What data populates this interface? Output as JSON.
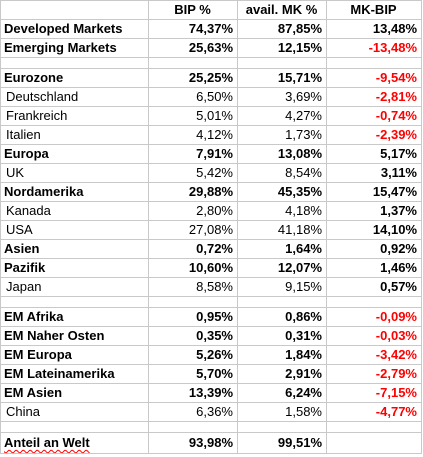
{
  "header": {
    "col1": "",
    "col2": "BIP %",
    "col3": "avail. MK %",
    "col4": "MK-BIP"
  },
  "rows": [
    {
      "label": "Developed Markets",
      "bip": "74,37%",
      "mk": "87,85%",
      "diff": "13,48%"
    },
    {
      "label": "Emerging Markets",
      "bip": "25,63%",
      "mk": "12,15%",
      "diff": "-13,48%"
    },
    {
      "label": "Eurozone",
      "bip": "25,25%",
      "mk": "15,71%",
      "diff": "-9,54%"
    },
    {
      "label": "Deutschland",
      "bip": "6,50%",
      "mk": "3,69%",
      "diff": "-2,81%"
    },
    {
      "label": "Frankreich",
      "bip": "5,01%",
      "mk": "4,27%",
      "diff": "-0,74%"
    },
    {
      "label": "Italien",
      "bip": "4,12%",
      "mk": "1,73%",
      "diff": "-2,39%"
    },
    {
      "label": "Europa",
      "bip": "7,91%",
      "mk": "13,08%",
      "diff": "5,17%"
    },
    {
      "label": "UK",
      "bip": "5,42%",
      "mk": "8,54%",
      "diff": "3,11%"
    },
    {
      "label": "Nordamerika",
      "bip": "29,88%",
      "mk": "45,35%",
      "diff": "15,47%"
    },
    {
      "label": "Kanada",
      "bip": "2,80%",
      "mk": "4,18%",
      "diff": "1,37%"
    },
    {
      "label": "USA",
      "bip": "27,08%",
      "mk": "41,18%",
      "diff": "14,10%"
    },
    {
      "label": "Asien",
      "bip": "0,72%",
      "mk": "1,64%",
      "diff": "0,92%"
    },
    {
      "label": "Pazifik",
      "bip": "10,60%",
      "mk": "12,07%",
      "diff": "1,46%"
    },
    {
      "label": "Japan",
      "bip": "8,58%",
      "mk": "9,15%",
      "diff": "0,57%"
    },
    {
      "label": "EM Afrika",
      "bip": "0,95%",
      "mk": "0,86%",
      "diff": "-0,09%"
    },
    {
      "label": "EM Naher Osten",
      "bip": "0,35%",
      "mk": "0,31%",
      "diff": "-0,03%"
    },
    {
      "label": "EM Europa",
      "bip": "5,26%",
      "mk": "1,84%",
      "diff": "-3,42%"
    },
    {
      "label": "EM Lateinamerika",
      "bip": "5,70%",
      "mk": "2,91%",
      "diff": "-2,79%"
    },
    {
      "label": "EM Asien",
      "bip": "13,39%",
      "mk": "6,24%",
      "diff": "-7,15%"
    },
    {
      "label": "China",
      "bip": "6,36%",
      "mk": "1,58%",
      "diff": "-4,77%"
    }
  ],
  "total": {
    "label": "Anteil an Welt",
    "bip": "93,98%",
    "mk": "99,51%",
    "diff": ""
  },
  "colors": {
    "negative": "#ff0000",
    "gridline": "#c9c9c9",
    "spellcheck_underline": "#ff0000"
  }
}
